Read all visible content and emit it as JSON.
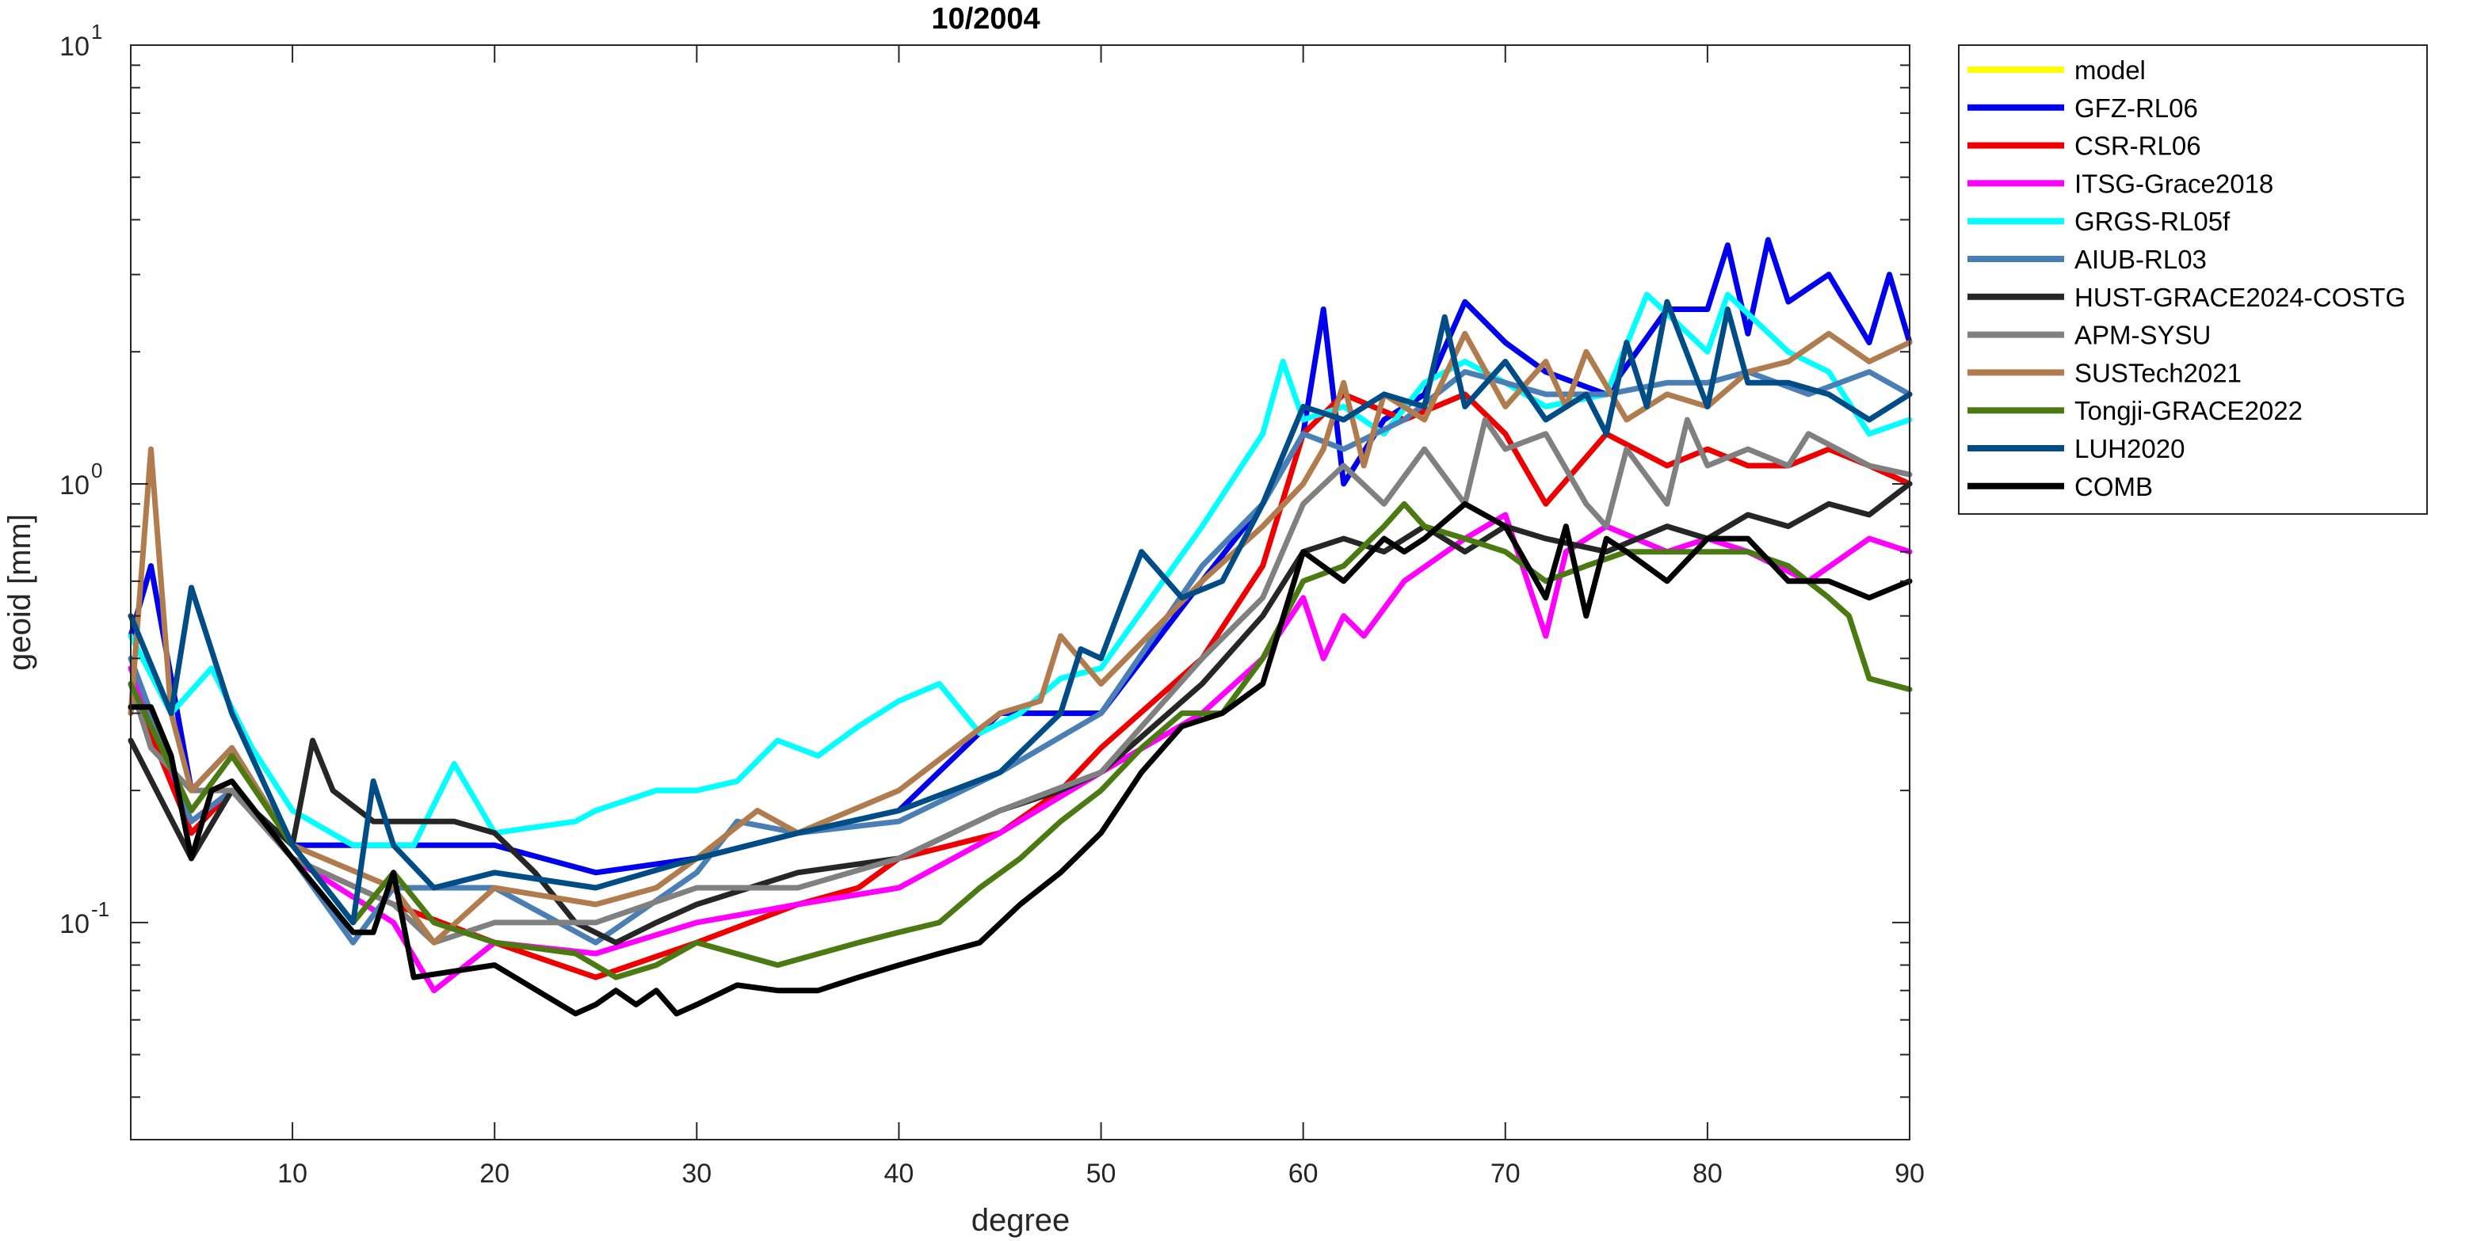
{
  "chart_data": {
    "type": "line",
    "title": "10/2004",
    "xlabel": "degree",
    "ylabel": "geoid [mm]",
    "xlim": [
      2,
      90
    ],
    "ylim": [
      0.032,
      10
    ],
    "yscale": "log",
    "grid": false,
    "legend_position": "outside-right",
    "x_ticks": [
      10,
      20,
      30,
      40,
      50,
      60,
      70,
      80,
      90
    ],
    "x_tick_labels": [
      "10",
      "20",
      "30",
      "40",
      "50",
      "60",
      "70",
      "80",
      "90"
    ],
    "y_ticks": [
      {
        "value": 0.1,
        "base": "10",
        "exp": "-1"
      },
      {
        "value": 1,
        "base": "10",
        "exp": "0"
      },
      {
        "value": 10,
        "base": "10",
        "exp": "1"
      }
    ],
    "series": [
      {
        "name": "model",
        "color": "#ffff00",
        "x": [],
        "y": []
      },
      {
        "name": "GFZ-RL06",
        "color": "#0000ee",
        "x": [
          2,
          3,
          5,
          7,
          10,
          15,
          20,
          25,
          30,
          35,
          40,
          45,
          50,
          55,
          58,
          60,
          61,
          62,
          64,
          66,
          68,
          70,
          72,
          75,
          78,
          80,
          81,
          82,
          83,
          84,
          86,
          88,
          89,
          90
        ],
        "y": [
          0.45,
          0.65,
          0.2,
          0.25,
          0.15,
          0.15,
          0.15,
          0.13,
          0.14,
          0.16,
          0.18,
          0.3,
          0.3,
          0.6,
          0.9,
          1.3,
          2.5,
          1.0,
          1.4,
          1.6,
          2.6,
          2.1,
          1.8,
          1.6,
          2.5,
          2.5,
          3.5,
          2.2,
          3.6,
          2.6,
          3.0,
          2.1,
          3.0,
          2.1
        ]
      },
      {
        "name": "CSR-RL06",
        "color": "#ee0000",
        "x": [
          2,
          5,
          7,
          10,
          15,
          20,
          25,
          30,
          35,
          38,
          40,
          45,
          48,
          50,
          55,
          58,
          60,
          62,
          65,
          68,
          70,
          72,
          75,
          78,
          80,
          82,
          84,
          86,
          88,
          90
        ],
        "y": [
          0.35,
          0.16,
          0.2,
          0.14,
          0.11,
          0.09,
          0.075,
          0.09,
          0.11,
          0.12,
          0.14,
          0.16,
          0.2,
          0.25,
          0.4,
          0.65,
          1.3,
          1.6,
          1.4,
          1.6,
          1.3,
          0.9,
          1.3,
          1.1,
          1.2,
          1.1,
          1.1,
          1.2,
          1.1,
          1.0
        ]
      },
      {
        "name": "ITSG-Grace2018",
        "color": "#ff00ff",
        "x": [
          2,
          5,
          7,
          10,
          15,
          17,
          20,
          25,
          30,
          35,
          40,
          45,
          50,
          55,
          58,
          60,
          61,
          62,
          63,
          65,
          68,
          70,
          72,
          73,
          75,
          78,
          80,
          82,
          85,
          88,
          90
        ],
        "y": [
          0.38,
          0.17,
          0.2,
          0.14,
          0.1,
          0.07,
          0.09,
          0.085,
          0.1,
          0.11,
          0.12,
          0.16,
          0.22,
          0.3,
          0.4,
          0.55,
          0.4,
          0.5,
          0.45,
          0.6,
          0.75,
          0.85,
          0.45,
          0.7,
          0.8,
          0.7,
          0.75,
          0.7,
          0.6,
          0.75,
          0.7
        ]
      },
      {
        "name": "GRGS-RL05f",
        "color": "#00ffff",
        "x": [
          2,
          4,
          6,
          8,
          10,
          13,
          16,
          18,
          20,
          24,
          25,
          28,
          30,
          32,
          34,
          36,
          38,
          40,
          42,
          44,
          46,
          48,
          50,
          55,
          58,
          59,
          60,
          62,
          64,
          66,
          68,
          70,
          72,
          75,
          77,
          80,
          81,
          84,
          86,
          88,
          90
        ],
        "y": [
          0.45,
          0.3,
          0.38,
          0.25,
          0.18,
          0.15,
          0.15,
          0.23,
          0.16,
          0.17,
          0.18,
          0.2,
          0.2,
          0.21,
          0.26,
          0.24,
          0.28,
          0.32,
          0.35,
          0.27,
          0.3,
          0.36,
          0.38,
          0.8,
          1.3,
          1.9,
          1.4,
          1.5,
          1.3,
          1.7,
          1.9,
          1.7,
          1.5,
          1.6,
          2.7,
          2.0,
          2.7,
          2.0,
          1.8,
          1.3,
          1.4
        ]
      },
      {
        "name": "AIUB-RL03",
        "color": "#4a7fb5",
        "x": [
          2,
          5,
          7,
          10,
          13,
          15,
          20,
          25,
          30,
          32,
          35,
          40,
          45,
          50,
          55,
          58,
          60,
          62,
          65,
          68,
          70,
          72,
          75,
          78,
          80,
          82,
          85,
          88,
          90
        ],
        "y": [
          0.4,
          0.17,
          0.2,
          0.14,
          0.09,
          0.12,
          0.12,
          0.09,
          0.13,
          0.17,
          0.16,
          0.17,
          0.22,
          0.3,
          0.65,
          0.9,
          1.3,
          1.2,
          1.4,
          1.8,
          1.7,
          1.6,
          1.6,
          1.7,
          1.7,
          1.8,
          1.6,
          1.8,
          1.6
        ]
      },
      {
        "name": "HUST-GRACE2024-COSTG",
        "color": "#262626",
        "x": [
          2,
          5,
          7,
          10,
          11,
          12,
          14,
          16,
          18,
          20,
          22,
          24,
          26,
          28,
          30,
          35,
          40,
          45,
          48,
          50,
          55,
          58,
          60,
          62,
          64,
          66,
          68,
          70,
          72,
          75,
          78,
          80,
          82,
          84,
          86,
          88,
          90
        ],
        "y": [
          0.26,
          0.14,
          0.2,
          0.15,
          0.26,
          0.2,
          0.17,
          0.17,
          0.17,
          0.16,
          0.13,
          0.1,
          0.09,
          0.1,
          0.11,
          0.13,
          0.14,
          0.18,
          0.2,
          0.22,
          0.35,
          0.5,
          0.7,
          0.75,
          0.7,
          0.8,
          0.7,
          0.8,
          0.75,
          0.7,
          0.8,
          0.75,
          0.85,
          0.8,
          0.9,
          0.85,
          1.0
        ]
      },
      {
        "name": "APM-SYSU",
        "color": "#808080",
        "x": [
          2,
          3,
          5,
          7,
          10,
          15,
          17,
          20,
          25,
          30,
          35,
          40,
          45,
          50,
          55,
          58,
          60,
          62,
          64,
          66,
          68,
          69,
          70,
          72,
          74,
          75,
          76,
          78,
          79,
          80,
          82,
          84,
          85,
          88,
          90
        ],
        "y": [
          0.35,
          0.25,
          0.2,
          0.2,
          0.14,
          0.11,
          0.09,
          0.1,
          0.1,
          0.12,
          0.12,
          0.14,
          0.18,
          0.22,
          0.4,
          0.55,
          0.9,
          1.1,
          0.9,
          1.2,
          0.9,
          1.4,
          1.2,
          1.3,
          0.9,
          0.8,
          1.2,
          0.9,
          1.4,
          1.1,
          1.2,
          1.1,
          1.3,
          1.1,
          1.05
        ]
      },
      {
        "name": "SUSTech2021",
        "color": "#b07c4e",
        "x": [
          2,
          3,
          4,
          5,
          7,
          10,
          15,
          17,
          20,
          25,
          28,
          30,
          33,
          35,
          40,
          45,
          47,
          48,
          50,
          55,
          58,
          60,
          61,
          62,
          63,
          64,
          66,
          68,
          70,
          72,
          73,
          74,
          76,
          78,
          80,
          82,
          84,
          86,
          88,
          90
        ],
        "y": [
          0.3,
          1.2,
          0.3,
          0.2,
          0.25,
          0.15,
          0.12,
          0.09,
          0.12,
          0.11,
          0.12,
          0.14,
          0.18,
          0.16,
          0.2,
          0.3,
          0.32,
          0.45,
          0.35,
          0.6,
          0.8,
          1.0,
          1.2,
          1.7,
          1.1,
          1.6,
          1.4,
          2.2,
          1.5,
          1.9,
          1.5,
          2.0,
          1.4,
          1.6,
          1.5,
          1.8,
          1.9,
          2.2,
          1.9,
          2.1
        ]
      },
      {
        "name": "Tongji-GRACE2022",
        "color": "#4c7a12",
        "x": [
          2,
          5,
          7,
          10,
          13,
          15,
          17,
          20,
          24,
          26,
          28,
          30,
          34,
          38,
          40,
          42,
          44,
          46,
          48,
          50,
          52,
          54,
          56,
          58,
          60,
          62,
          64,
          65,
          66,
          68,
          70,
          72,
          74,
          76,
          78,
          80,
          82,
          84,
          86,
          87,
          88,
          90
        ],
        "y": [
          0.35,
          0.18,
          0.24,
          0.15,
          0.1,
          0.13,
          0.1,
          0.09,
          0.085,
          0.075,
          0.08,
          0.09,
          0.08,
          0.09,
          0.095,
          0.1,
          0.12,
          0.14,
          0.17,
          0.2,
          0.25,
          0.3,
          0.3,
          0.4,
          0.6,
          0.65,
          0.8,
          0.9,
          0.8,
          0.75,
          0.7,
          0.6,
          0.65,
          0.7,
          0.7,
          0.7,
          0.7,
          0.65,
          0.55,
          0.5,
          0.36,
          0.34
        ]
      },
      {
        "name": "LUH2020",
        "color": "#004c86",
        "x": [
          2,
          4,
          5,
          7,
          10,
          13,
          14,
          15,
          17,
          20,
          25,
          30,
          35,
          40,
          45,
          48,
          49,
          50,
          52,
          54,
          56,
          58,
          60,
          62,
          64,
          66,
          67,
          68,
          70,
          72,
          74,
          75,
          76,
          77,
          78,
          80,
          81,
          82,
          84,
          86,
          88,
          90
        ],
        "y": [
          0.5,
          0.3,
          0.58,
          0.3,
          0.15,
          0.1,
          0.21,
          0.15,
          0.12,
          0.13,
          0.12,
          0.14,
          0.16,
          0.18,
          0.22,
          0.3,
          0.42,
          0.4,
          0.7,
          0.55,
          0.6,
          0.9,
          1.5,
          1.4,
          1.6,
          1.5,
          2.4,
          1.5,
          1.9,
          1.4,
          1.6,
          1.3,
          2.1,
          1.5,
          2.6,
          1.5,
          2.5,
          1.7,
          1.7,
          1.6,
          1.4,
          1.6
        ]
      },
      {
        "name": "COMB",
        "color": "#000000",
        "x": [
          2,
          3,
          4,
          5,
          6,
          7,
          10,
          13,
          14,
          15,
          16,
          20,
          24,
          25,
          26,
          27,
          28,
          29,
          30,
          32,
          34,
          36,
          38,
          40,
          42,
          44,
          46,
          48,
          50,
          52,
          54,
          56,
          58,
          60,
          62,
          64,
          65,
          66,
          68,
          70,
          72,
          73,
          74,
          75,
          76,
          78,
          80,
          82,
          84,
          86,
          88,
          90
        ],
        "y": [
          0.31,
          0.31,
          0.24,
          0.14,
          0.2,
          0.21,
          0.14,
          0.095,
          0.095,
          0.13,
          0.075,
          0.08,
          0.062,
          0.065,
          0.07,
          0.065,
          0.07,
          0.062,
          0.065,
          0.072,
          0.07,
          0.07,
          0.075,
          0.08,
          0.085,
          0.09,
          0.11,
          0.13,
          0.16,
          0.22,
          0.28,
          0.3,
          0.35,
          0.7,
          0.6,
          0.75,
          0.7,
          0.75,
          0.9,
          0.8,
          0.55,
          0.8,
          0.5,
          0.75,
          0.7,
          0.6,
          0.75,
          0.75,
          0.6,
          0.6,
          0.55,
          0.6
        ]
      }
    ]
  }
}
